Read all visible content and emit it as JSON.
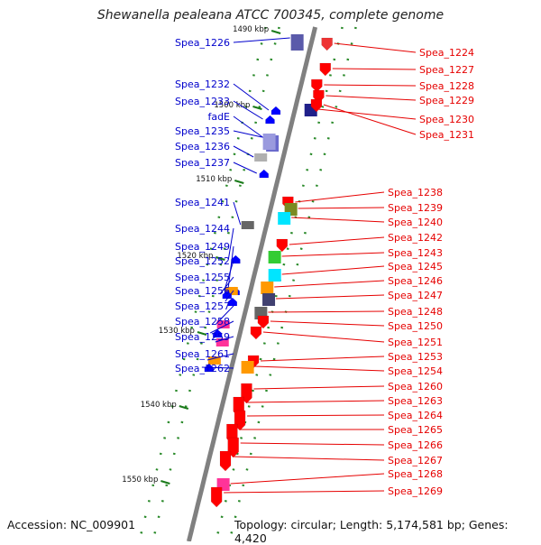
{
  "title": "Shewanella pealeana ATCC 700345, complete genome",
  "accession": "Accession: NC_009901",
  "summary": "Topology: circular; Length: 5,174,581 bp; Genes: 4,420",
  "backbone_color": "#808080",
  "label_colors": {
    "minus_strand": "#0000cc",
    "plus_strand": "#e60000"
  },
  "scale_labels": [
    "1490 kbp",
    "1500 kbp",
    "1510 kbp",
    "1520 kbp",
    "1530 kbp",
    "1540 kbp",
    "1550 kbp"
  ],
  "left_genes": [
    {
      "label": "Spea_1226",
      "color": "#5a5aaa"
    },
    {
      "label": "Spea_1232",
      "color": "#0000ff"
    },
    {
      "label": "Spea_1233",
      "color": "#0000ff"
    },
    {
      "label": "fadE",
      "color": "#6a6acc"
    },
    {
      "label": "Spea_1235",
      "color": "#9a9ade"
    },
    {
      "label": "Spea_1236",
      "color": "#b0b0b0"
    },
    {
      "label": "Spea_1237",
      "color": "#0000ff"
    },
    {
      "label": "Spea_1241",
      "color": "#666666"
    },
    {
      "label": "Spea_1244",
      "color": "#0000ff"
    },
    {
      "label": "Spea_1249",
      "color": "#0000ff"
    },
    {
      "label": "Spea_1252",
      "color": "#ff9900"
    },
    {
      "label": "Spea_1255",
      "color": "#0000ff"
    },
    {
      "label": "Spea_1256",
      "color": "#0000ff"
    },
    {
      "label": "Spea_1257",
      "color": "#ff3399"
    },
    {
      "label": "Spea_1258",
      "color": "#0000ff"
    },
    {
      "label": "Spea_1259",
      "color": "#ff3399"
    },
    {
      "label": "Spea_1261",
      "color": "#ff9900"
    },
    {
      "label": "Spea_1262",
      "color": "#0000ff"
    }
  ],
  "right_genes": [
    {
      "label": "Spea_1224",
      "color": "#ee3333"
    },
    {
      "label": "Spea_1227",
      "color": "#ff0000"
    },
    {
      "label": "Spea_1228",
      "color": "#ff0000"
    },
    {
      "label": "Spea_1229",
      "color": "#ff0000"
    },
    {
      "label": "Spea_1230",
      "color": "#20208a"
    },
    {
      "label": "Spea_1231",
      "color": "#ff0000"
    },
    {
      "label": "Spea_1238",
      "color": "#ff0000"
    },
    {
      "label": "Spea_1239",
      "color": "#7a8a22"
    },
    {
      "label": "Spea_1240",
      "color": "#00e5ff"
    },
    {
      "label": "Spea_1242",
      "color": "#ff0000"
    },
    {
      "label": "Spea_1243",
      "color": "#33cc33"
    },
    {
      "label": "Spea_1245",
      "color": "#00e5ff"
    },
    {
      "label": "Spea_1246",
      "color": "#ff9900"
    },
    {
      "label": "Spea_1247",
      "color": "#404070"
    },
    {
      "label": "Spea_1248",
      "color": "#666666"
    },
    {
      "label": "Spea_1250",
      "color": "#ff0000"
    },
    {
      "label": "Spea_1251",
      "color": "#ff0000"
    },
    {
      "label": "Spea_1253",
      "color": "#ff0000"
    },
    {
      "label": "Spea_1254",
      "color": "#ff9900"
    },
    {
      "label": "Spea_1260",
      "color": "#ff0000"
    },
    {
      "label": "Spea_1263",
      "color": "#ff0000"
    },
    {
      "label": "Spea_1264",
      "color": "#ff0000"
    },
    {
      "label": "Spea_1265",
      "color": "#ff0000"
    },
    {
      "label": "Spea_1266",
      "color": "#ff0000"
    },
    {
      "label": "Spea_1267",
      "color": "#ff0000"
    },
    {
      "label": "Spea_1268",
      "color": "#ff3399"
    },
    {
      "label": "Spea_1269",
      "color": "#ff0000"
    }
  ]
}
